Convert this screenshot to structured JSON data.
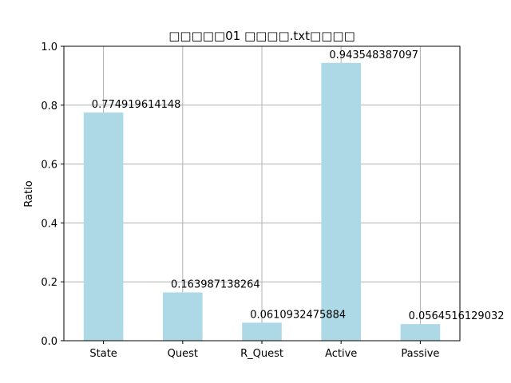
{
  "chart_data": {
    "type": "bar",
    "title": "□□□□□01 □□□□.txt□□□□",
    "xlabel": "",
    "ylabel": "Ratio",
    "categories": [
      "State",
      "Quest",
      "R_Quest",
      "Active",
      "Passive"
    ],
    "values": [
      0.774919614148,
      0.163987138264,
      0.0610932475884,
      0.943548387097,
      0.0564516129032
    ],
    "data_labels": [
      "0.774919614148",
      "0.163987138264",
      "0.0610932475884",
      "0.943548387097",
      "0.0564516129032"
    ],
    "ylim": [
      0,
      1.0
    ],
    "yticks": [
      "0.0",
      "0.2",
      "0.4",
      "0.6",
      "0.8",
      "1.0"
    ],
    "grid": true,
    "legend": "none",
    "bar_color": "#add8e6"
  }
}
